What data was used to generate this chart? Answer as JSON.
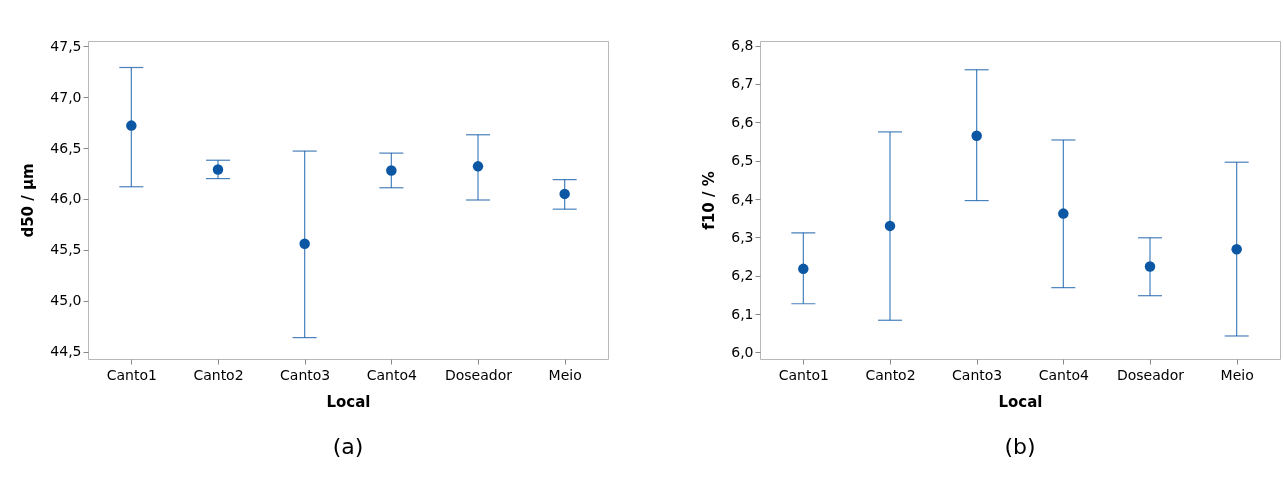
{
  "chart_data": [
    {
      "type": "scatter",
      "xlabel": "Local",
      "ylabel": "d50 / μm",
      "categories": [
        "Canto1",
        "Canto2",
        "Canto3",
        "Canto4",
        "Doseador",
        "Meio"
      ],
      "ylim": [
        44.43,
        47.55
      ],
      "yticks": [
        {
          "value": 44.5,
          "label": "44,5"
        },
        {
          "value": 45,
          "label": "45,0"
        },
        {
          "value": 45.5,
          "label": "45,5"
        },
        {
          "value": 46,
          "label": "46,0"
        },
        {
          "value": 46.5,
          "label": "46,5"
        },
        {
          "value": 47,
          "label": "47,0"
        },
        {
          "value": 47.5,
          "label": "47,5"
        }
      ],
      "grid": false,
      "marker": "circle",
      "series": [
        {
          "color": "#0b57a4",
          "values": [
            46.72,
            46.29,
            45.56,
            46.28,
            46.32,
            46.05
          ],
          "errors": [
            [
              46.12,
              47.29
            ],
            [
              46.2,
              46.38
            ],
            [
              44.64,
              46.47
            ],
            [
              46.11,
              46.45
            ],
            [
              45.99,
              46.63
            ],
            [
              45.9,
              46.19
            ]
          ]
        }
      ],
      "annotations": [
        "(a)"
      ]
    },
    {
      "type": "scatter",
      "xlabel": "Local",
      "ylabel": "f10 / %",
      "categories": [
        "Canto1",
        "Canto2",
        "Canto3",
        "Canto4",
        "Doseador",
        "Meio"
      ],
      "ylim": [
        5.983,
        6.812
      ],
      "yticks": [
        {
          "value": 6.0,
          "label": "6,0"
        },
        {
          "value": 6.1,
          "label": "6,1"
        },
        {
          "value": 6.2,
          "label": "6,2"
        },
        {
          "value": 6.3,
          "label": "6,3"
        },
        {
          "value": 6.4,
          "label": "6,4"
        },
        {
          "value": 6.5,
          "label": "6,5"
        },
        {
          "value": 6.6,
          "label": "6,6"
        },
        {
          "value": 6.7,
          "label": "6,7"
        },
        {
          "value": 6.8,
          "label": "6,8"
        }
      ],
      "grid": false,
      "marker": "circle",
      "series": [
        {
          "color": "#0b57a4",
          "values": [
            6.218,
            6.33,
            6.565,
            6.362,
            6.224,
            6.269
          ],
          "errors": [
            [
              6.127,
              6.312
            ],
            [
              6.084,
              6.575
            ],
            [
              6.396,
              6.737
            ],
            [
              6.169,
              6.554
            ],
            [
              6.148,
              6.299
            ],
            [
              6.043,
              6.496
            ]
          ]
        }
      ],
      "annotations": [
        "(b)"
      ]
    }
  ]
}
